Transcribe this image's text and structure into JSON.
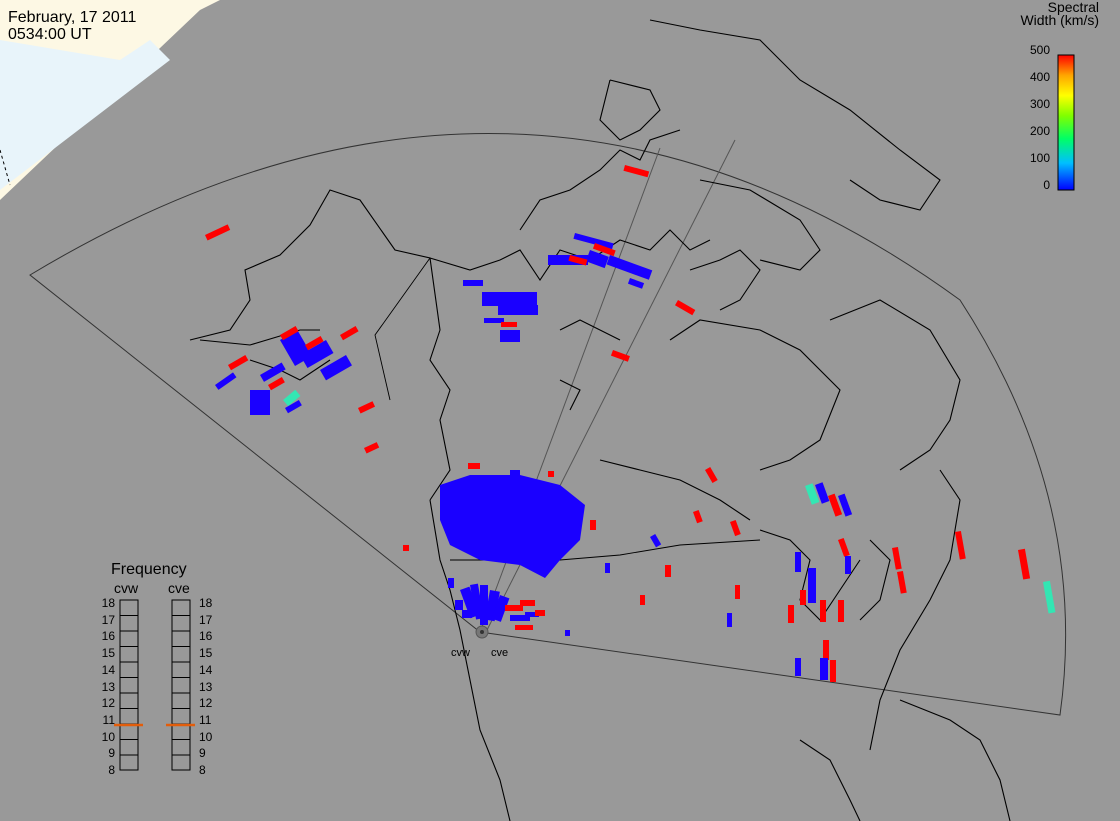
{
  "header": {
    "date": "February, 17 2011",
    "time": "0534:00 UT"
  },
  "colorbar": {
    "title_line1": "Spectral",
    "title_line2": "Width (km/s)",
    "ticks": [
      "500",
      "400",
      "300",
      "200",
      "100",
      "0"
    ],
    "colors": [
      "#0000ff",
      "#00bfff",
      "#00ff66",
      "#80ff00",
      "#ffff00",
      "#ffa500",
      "#ff0000"
    ]
  },
  "frequency_panel": {
    "title": "Frequency",
    "radars": [
      "cvw",
      "cve"
    ],
    "scale": [
      "18",
      "17",
      "16",
      "15",
      "14",
      "13",
      "12",
      "11",
      "10",
      "9",
      "8"
    ],
    "values_mhz": [
      10.7,
      10.7
    ]
  },
  "radars": [
    {
      "code": "cvw",
      "label": "cvw"
    },
    {
      "code": "cve",
      "label": "cve"
    }
  ],
  "colors": {
    "background": "#999999",
    "land_day": "#fffbe6",
    "land_ice": "#eaf6fb",
    "low_width": "#1a00ff",
    "high_width": "#ff0000",
    "mid_width": "#33e6b3"
  }
}
